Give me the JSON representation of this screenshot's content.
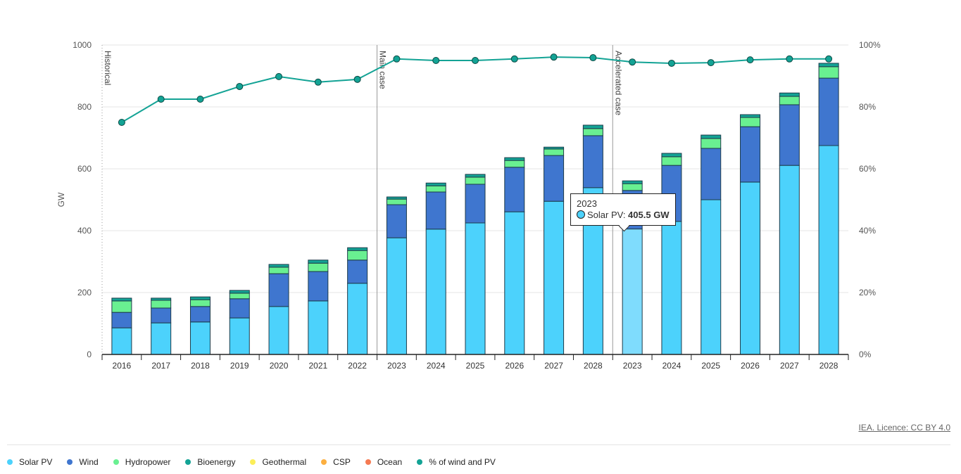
{
  "chart_data": {
    "type": "bar",
    "stacked": true,
    "ylabel": "GW",
    "ylim": [
      0,
      1000
    ],
    "yticks": [
      0,
      200,
      400,
      600,
      800,
      1000
    ],
    "y2lim": [
      0,
      100
    ],
    "y2ticks": [
      "0%",
      "20%",
      "40%",
      "60%",
      "80%",
      "100%"
    ],
    "grid": true,
    "legend_position": "bottom-left",
    "groups": [
      {
        "label": "Historical",
        "categories": [
          "2016",
          "2017",
          "2018",
          "2019",
          "2020",
          "2021",
          "2022"
        ]
      },
      {
        "label": "Main case",
        "categories": [
          "2023",
          "2024",
          "2025",
          "2026",
          "2027",
          "2028"
        ]
      },
      {
        "label": "Accelerated case",
        "categories": [
          "2023",
          "2024",
          "2025",
          "2026",
          "2027",
          "2028"
        ]
      }
    ],
    "categories": [
      "2016",
      "2017",
      "2018",
      "2019",
      "2020",
      "2021",
      "2022",
      "2023",
      "2024",
      "2025",
      "2026",
      "2027",
      "2028",
      "2023",
      "2024",
      "2025",
      "2026",
      "2027",
      "2028"
    ],
    "series": [
      {
        "name": "Solar PV",
        "color": "#4cd2fc",
        "values": [
          86,
          102,
          105,
          118,
          155,
          173,
          230,
          377,
          405,
          425,
          461,
          495,
          539,
          405.5,
          430,
          500,
          557,
          611,
          675
        ]
      },
      {
        "name": "Wind",
        "color": "#3f76cf",
        "values": [
          50,
          48,
          50,
          62,
          106,
          95,
          75,
          107,
          120,
          125,
          144,
          148,
          168,
          124.5,
          181,
          166,
          179,
          196,
          218
        ]
      },
      {
        "name": "Hydropower",
        "color": "#69f091",
        "values": [
          37,
          25,
          22,
          18,
          21,
          27,
          31,
          18,
          20,
          23,
          22,
          21,
          23,
          22,
          28,
          32,
          30,
          27,
          37
        ]
      },
      {
        "name": "Bioenergy",
        "color": "#13a395",
        "values": [
          9,
          7,
          9,
          9,
          9,
          10,
          9,
          7,
          9,
          9,
          9,
          6,
          11,
          9,
          11,
          11,
          9,
          11,
          11
        ]
      },
      {
        "name": "Geothermal",
        "color": "#fcee58",
        "values": [
          0,
          0,
          0,
          0,
          0,
          0,
          0,
          0,
          0,
          0,
          0,
          0,
          0,
          0,
          0,
          0,
          0,
          0,
          0
        ]
      },
      {
        "name": "CSP",
        "color": "#fcaf3f",
        "values": [
          0,
          0,
          0,
          0,
          0,
          0,
          0,
          0,
          0,
          0,
          0,
          0,
          0,
          0,
          0,
          0,
          0,
          0,
          0
        ]
      },
      {
        "name": "Ocean",
        "color": "#f57a52",
        "values": [
          0,
          0,
          0,
          0,
          0,
          0,
          0,
          0,
          0,
          0,
          0,
          0,
          0,
          0,
          0,
          0,
          0,
          0,
          0
        ]
      }
    ],
    "line_series": {
      "name": "% of wind and PV",
      "color": "#13a395",
      "axis": "right",
      "values": [
        75,
        82.5,
        82.5,
        86.6,
        89.8,
        88,
        88.9,
        95.5,
        95,
        95,
        95.5,
        96.1,
        95.9,
        94.5,
        94.1,
        94.3,
        95.2,
        95.5,
        95.5
      ]
    },
    "tooltip": {
      "year": "2023",
      "series": "Solar PV",
      "label": "Solar PV: ",
      "value": "405.5 GW",
      "category_index": 13
    }
  },
  "footer": {
    "licence": "IEA. Licence: CC BY 4.0"
  }
}
